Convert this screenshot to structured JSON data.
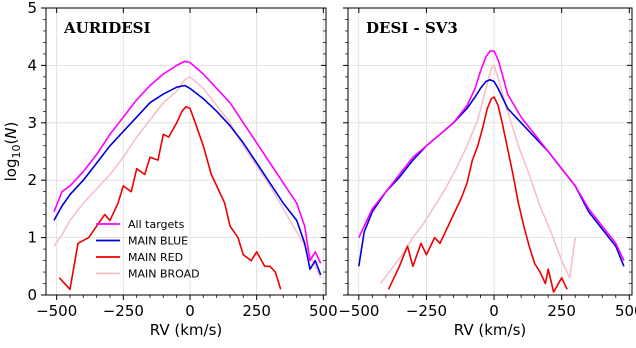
{
  "chart_data": [
    {
      "type": "line",
      "title": "AURIDESI",
      "xlabel": "RV (km/s)",
      "ylabel": "log10(N)",
      "xlim": [
        -540,
        510
      ],
      "ylim": [
        0,
        5
      ],
      "x_ticks": [
        -500,
        -250,
        0,
        250,
        500
      ],
      "y_ticks": [
        0,
        1,
        2,
        3,
        4,
        5
      ],
      "grid": true,
      "legend": {
        "position": "bottom-left",
        "entries": [
          "All targets",
          "MAIN BLUE",
          "MAIN RED",
          "MAIN BROAD"
        ]
      },
      "series": [
        {
          "name": "All targets",
          "color": "#ff00ff",
          "x": [
            -510,
            -480,
            -450,
            -400,
            -350,
            -300,
            -250,
            -200,
            -150,
            -100,
            -50,
            -20,
            0,
            50,
            100,
            150,
            200,
            250,
            300,
            350,
            400,
            430,
            450,
            470,
            490
          ],
          "y": [
            1.45,
            1.8,
            1.9,
            2.15,
            2.45,
            2.8,
            3.1,
            3.4,
            3.65,
            3.85,
            4.0,
            4.07,
            4.05,
            3.85,
            3.6,
            3.35,
            3.0,
            2.65,
            2.3,
            1.95,
            1.6,
            1.2,
            0.6,
            0.75,
            0.55
          ]
        },
        {
          "name": "MAIN BLUE",
          "color": "#0000dd",
          "x": [
            -510,
            -480,
            -450,
            -400,
            -350,
            -300,
            -250,
            -200,
            -150,
            -100,
            -50,
            -20,
            0,
            50,
            100,
            150,
            200,
            250,
            300,
            350,
            400,
            430,
            450,
            470,
            490
          ],
          "y": [
            1.3,
            1.55,
            1.75,
            2.0,
            2.3,
            2.6,
            2.85,
            3.1,
            3.35,
            3.5,
            3.62,
            3.65,
            3.6,
            3.42,
            3.2,
            2.95,
            2.65,
            2.3,
            1.95,
            1.6,
            1.3,
            0.9,
            0.45,
            0.6,
            0.35
          ]
        },
        {
          "name": "MAIN RED",
          "color": "#ee0000",
          "x": [
            -490,
            -450,
            -420,
            -380,
            -350,
            -320,
            -300,
            -270,
            -250,
            -220,
            -200,
            -170,
            -150,
            -120,
            -100,
            -80,
            -50,
            -30,
            -15,
            0,
            20,
            50,
            80,
            100,
            130,
            150,
            180,
            200,
            230,
            250,
            280,
            300,
            320,
            340
          ],
          "y": [
            0.3,
            0.1,
            0.9,
            1.0,
            1.2,
            1.4,
            1.3,
            1.6,
            1.9,
            1.8,
            2.2,
            2.1,
            2.4,
            2.35,
            2.8,
            2.75,
            3.0,
            3.2,
            3.28,
            3.25,
            3.0,
            2.6,
            2.1,
            1.9,
            1.6,
            1.2,
            1.0,
            0.7,
            0.6,
            0.75,
            0.5,
            0.5,
            0.4,
            0.1
          ]
        },
        {
          "name": "MAIN BROAD",
          "color": "#f7c0c8",
          "x": [
            -510,
            -480,
            -450,
            -400,
            -350,
            -300,
            -250,
            -200,
            -150,
            -100,
            -50,
            -20,
            0,
            50,
            100,
            150,
            200,
            250,
            300,
            350,
            400,
            450,
            470,
            490
          ],
          "y": [
            0.85,
            1.05,
            1.3,
            1.6,
            1.85,
            2.1,
            2.4,
            2.75,
            3.05,
            3.35,
            3.55,
            3.75,
            3.8,
            3.6,
            3.3,
            3.0,
            2.6,
            2.25,
            1.9,
            1.5,
            1.1,
            0.7,
            0.5,
            0.3
          ]
        }
      ]
    },
    {
      "type": "line",
      "title": "DESI - SV3",
      "xlabel": "RV (km/s)",
      "ylabel": "",
      "xlim": [
        -540,
        510
      ],
      "ylim": [
        0,
        5
      ],
      "x_ticks": [
        -500,
        -250,
        0,
        250,
        500
      ],
      "y_ticks": [
        0,
        1,
        2,
        3,
        4,
        5
      ],
      "grid": true,
      "series": [
        {
          "name": "All targets",
          "color": "#ff00ff",
          "x": [
            -500,
            -480,
            -450,
            -400,
            -350,
            -300,
            -250,
            -200,
            -150,
            -100,
            -70,
            -50,
            -30,
            -15,
            0,
            15,
            30,
            50,
            100,
            150,
            200,
            250,
            300,
            350,
            400,
            450,
            480
          ],
          "y": [
            1.0,
            1.2,
            1.5,
            1.8,
            2.1,
            2.4,
            2.6,
            2.8,
            3.0,
            3.3,
            3.6,
            3.9,
            4.15,
            4.25,
            4.25,
            4.1,
            3.85,
            3.5,
            3.1,
            2.8,
            2.5,
            2.2,
            1.9,
            1.5,
            1.2,
            0.9,
            0.6
          ]
        },
        {
          "name": "MAIN BLUE",
          "color": "#0000dd",
          "x": [
            -500,
            -480,
            -450,
            -400,
            -350,
            -300,
            -250,
            -200,
            -150,
            -100,
            -70,
            -50,
            -30,
            -15,
            0,
            15,
            30,
            50,
            100,
            150,
            200,
            250,
            300,
            350,
            400,
            450,
            480
          ],
          "y": [
            0.5,
            1.1,
            1.45,
            1.8,
            2.05,
            2.35,
            2.6,
            2.8,
            3.0,
            3.25,
            3.45,
            3.6,
            3.72,
            3.75,
            3.72,
            3.6,
            3.45,
            3.25,
            3.0,
            2.75,
            2.5,
            2.2,
            1.9,
            1.45,
            1.15,
            0.85,
            0.5
          ]
        },
        {
          "name": "MAIN RED",
          "color": "#ee0000",
          "x": [
            -390,
            -350,
            -320,
            -300,
            -270,
            -250,
            -220,
            -200,
            -170,
            -150,
            -120,
            -100,
            -80,
            -60,
            -40,
            -25,
            -10,
            0,
            15,
            30,
            50,
            70,
            90,
            110,
            130,
            150,
            170,
            190,
            200,
            220,
            250,
            270
          ],
          "y": [
            0.1,
            0.5,
            0.85,
            0.5,
            0.9,
            0.7,
            1.0,
            0.9,
            1.2,
            1.4,
            1.7,
            1.95,
            2.35,
            2.6,
            2.95,
            3.25,
            3.42,
            3.45,
            3.3,
            3.0,
            2.55,
            2.1,
            1.6,
            1.2,
            0.85,
            0.55,
            0.4,
            0.2,
            0.45,
            0.05,
            0.3,
            0.1
          ]
        },
        {
          "name": "MAIN BROAD",
          "color": "#f7c0c8",
          "x": [
            -420,
            -380,
            -340,
            -300,
            -260,
            -220,
            -180,
            -140,
            -100,
            -60,
            -30,
            -10,
            0,
            20,
            50,
            90,
            130,
            170,
            210,
            250,
            280,
            300
          ],
          "y": [
            0.2,
            0.45,
            0.7,
            1.0,
            1.25,
            1.55,
            1.85,
            2.2,
            2.6,
            3.05,
            3.6,
            3.95,
            4.0,
            3.7,
            3.2,
            2.6,
            2.1,
            1.55,
            1.1,
            0.6,
            0.3,
            1.0
          ]
        }
      ]
    }
  ]
}
